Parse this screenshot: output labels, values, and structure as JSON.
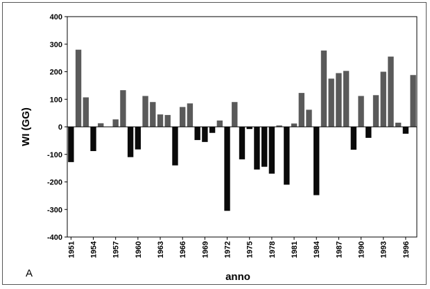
{
  "panel_label": "A",
  "chart_data": {
    "type": "bar",
    "title": "",
    "xlabel": "anno",
    "ylabel": "WI (GG)",
    "ylim": [
      -400,
      400
    ],
    "yticks": [
      400,
      300,
      200,
      100,
      0,
      -100,
      -200,
      -300,
      -400
    ],
    "xtick_labels": [
      "1951",
      "1954",
      "1957",
      "1960",
      "1963",
      "1966",
      "1969",
      "1972",
      "1975",
      "1978",
      "1981",
      "1984",
      "1987",
      "1990",
      "1993",
      "1996"
    ],
    "grid": false,
    "colors": {
      "positive": "#5a5a5a",
      "negative": "#0a0a0a"
    },
    "categories": [
      "1951",
      "1952",
      "1953",
      "1954",
      "1955",
      "1956",
      "1957",
      "1958",
      "1959",
      "1960",
      "1961",
      "1962",
      "1963",
      "1964",
      "1965",
      "1966",
      "1967",
      "1968",
      "1969",
      "1970",
      "1971",
      "1972",
      "1973",
      "1974",
      "1975",
      "1976",
      "1977",
      "1978",
      "1979",
      "1980",
      "1981",
      "1982",
      "1983",
      "1984",
      "1985",
      "1986",
      "1987",
      "1988",
      "1989",
      "1990",
      "1991",
      "1992",
      "1993",
      "1994",
      "1995",
      "1996",
      "1997"
    ],
    "values": [
      -128,
      280,
      107,
      -88,
      13,
      0,
      27,
      133,
      -110,
      -82,
      112,
      90,
      45,
      43,
      -140,
      72,
      85,
      -48,
      -55,
      -22,
      23,
      -305,
      90,
      -118,
      -8,
      -155,
      -145,
      -170,
      5,
      -210,
      12,
      123,
      62,
      -248,
      277,
      175,
      195,
      203,
      -83,
      112,
      -40,
      115,
      200,
      255,
      15,
      -25,
      188
    ]
  }
}
